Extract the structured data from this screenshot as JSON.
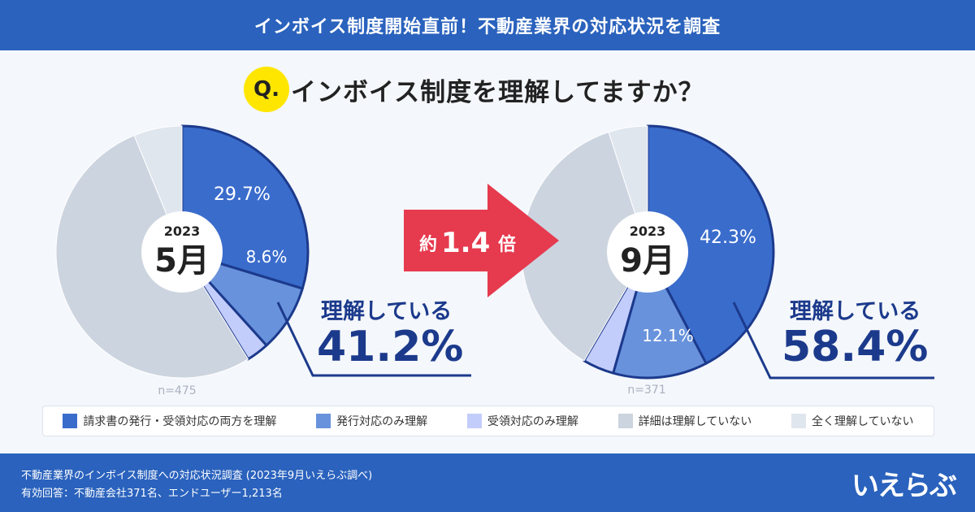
{
  "header": {
    "title": "インボイス制度開始直前！不動産業界の対応状況を調査"
  },
  "question": {
    "badge": "Q.",
    "text": "インボイス制度を理解してますか？"
  },
  "arrow": {
    "prefix": "約",
    "value": "1.4",
    "suffix": "倍"
  },
  "colors": [
    "#3a6ccc",
    "#6892dc",
    "#c3cdfb",
    "#ccd4df",
    "#e0e6ee"
  ],
  "categories": [
    "請求書の発行・受領対応の両方を理解",
    "発行対応のみ理解",
    "受領対応のみ理解",
    "詳細は理解していない",
    "全く理解していない"
  ],
  "chart_data": [
    {
      "type": "pie",
      "year": "2023",
      "month": "5月",
      "n": "n=475",
      "categories": [
        "請求書の発行・受領対応の両方を理解",
        "発行対応のみ理解",
        "受領対応のみ理解",
        "詳細は理解していない",
        "全く理解していない"
      ],
      "values": [
        29.7,
        8.6,
        2.9,
        52.6,
        6.2
      ],
      "labels": [
        "29.7%",
        "8.6%"
      ],
      "summary_label": "理解している",
      "summary_value": "41.2%"
    },
    {
      "type": "pie",
      "year": "2023",
      "month": "9月",
      "n": "n=371",
      "categories": [
        "請求書の発行・受領対応の両方を理解",
        "発行対応のみ理解",
        "受領対応のみ理解",
        "詳細は理解していない",
        "全く理解していない"
      ],
      "values": [
        42.3,
        12.1,
        4.0,
        36.6,
        5.0
      ],
      "labels": [
        "42.3%",
        "12.1%"
      ],
      "summary_label": "理解している",
      "summary_value": "58.4%"
    }
  ],
  "footer": {
    "line1": "不動産業界のインボイス制度への対応状況調査 (2023年9月いえらぶ調べ)",
    "line2": "有効回答：不動産会社371名、エンドユーザー1,213名",
    "logo": "いえらぶ"
  }
}
